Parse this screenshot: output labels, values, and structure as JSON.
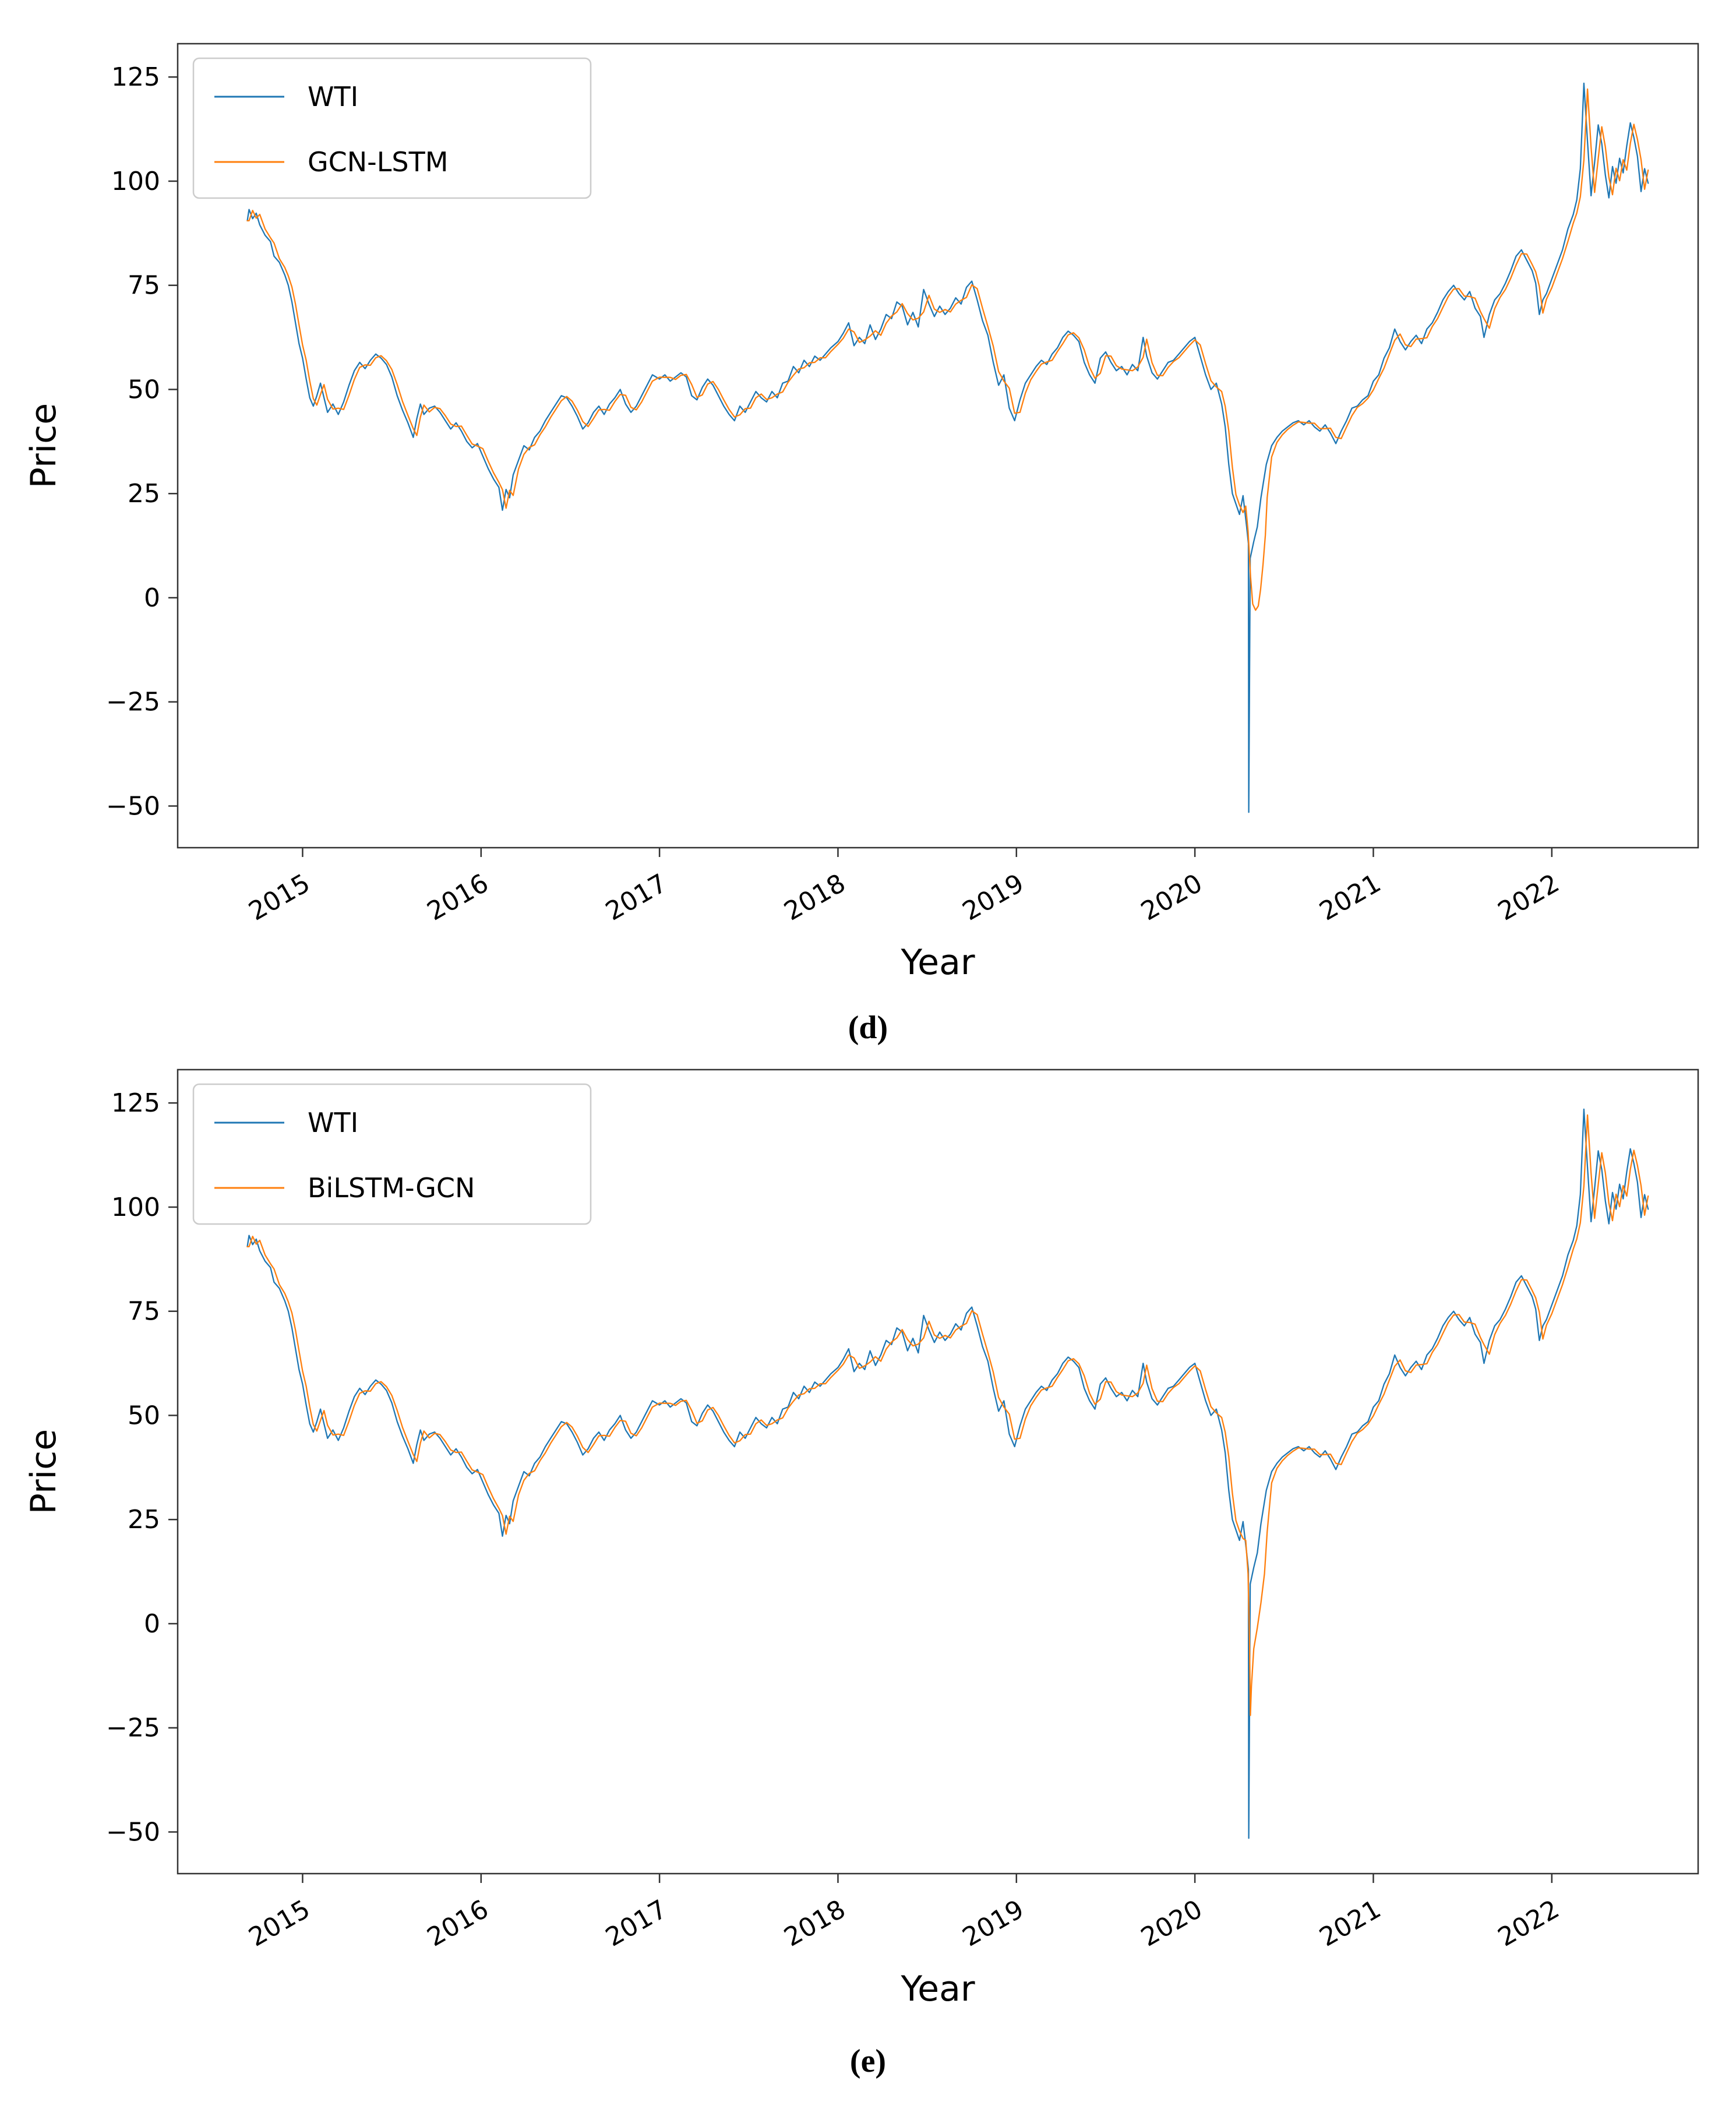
{
  "figure": {
    "background": "#ffffff"
  },
  "colors": {
    "wti": "#1f77b4",
    "prediction": "#ff7f0e",
    "spine": "#333333"
  },
  "shared": {
    "wti_points": [
      [
        2014.69,
        90.5
      ],
      [
        2014.7,
        93.2
      ],
      [
        2014.72,
        91.0
      ],
      [
        2014.74,
        92.3
      ],
      [
        2014.76,
        89.5
      ],
      [
        2014.79,
        87.0
      ],
      [
        2014.82,
        85.5
      ],
      [
        2014.84,
        82.0
      ],
      [
        2014.87,
        80.5
      ],
      [
        2014.9,
        77.5
      ],
      [
        2014.92,
        75.0
      ],
      [
        2014.94,
        71.0
      ],
      [
        2014.96,
        66.0
      ],
      [
        2014.98,
        61.0
      ],
      [
        2015.0,
        57.5
      ],
      [
        2015.02,
        52.5
      ],
      [
        2015.04,
        48.0
      ],
      [
        2015.06,
        46.0
      ],
      [
        2015.08,
        48.5
      ],
      [
        2015.1,
        51.5
      ],
      [
        2015.12,
        48.0
      ],
      [
        2015.14,
        44.5
      ],
      [
        2015.17,
        46.5
      ],
      [
        2015.2,
        44.0
      ],
      [
        2015.23,
        47.0
      ],
      [
        2015.26,
        51.0
      ],
      [
        2015.29,
        54.5
      ],
      [
        2015.32,
        56.5
      ],
      [
        2015.35,
        55.0
      ],
      [
        2015.38,
        57.0
      ],
      [
        2015.41,
        58.5
      ],
      [
        2015.44,
        57.5
      ],
      [
        2015.47,
        56.0
      ],
      [
        2015.5,
        53.0
      ],
      [
        2015.53,
        48.5
      ],
      [
        2015.56,
        45.0
      ],
      [
        2015.59,
        42.0
      ],
      [
        2015.62,
        38.5
      ],
      [
        2015.64,
        43.0
      ],
      [
        2015.66,
        46.5
      ],
      [
        2015.68,
        44.0
      ],
      [
        2015.71,
        45.5
      ],
      [
        2015.74,
        46.0
      ],
      [
        2015.77,
        44.5
      ],
      [
        2015.8,
        42.5
      ],
      [
        2015.83,
        40.5
      ],
      [
        2015.86,
        42.0
      ],
      [
        2015.89,
        40.0
      ],
      [
        2015.92,
        37.5
      ],
      [
        2015.95,
        36.0
      ],
      [
        2015.98,
        37.0
      ],
      [
        2016.01,
        34.0
      ],
      [
        2016.04,
        31.0
      ],
      [
        2016.07,
        28.5
      ],
      [
        2016.1,
        26.5
      ],
      [
        2016.12,
        21.0
      ],
      [
        2016.14,
        26.0
      ],
      [
        2016.16,
        24.0
      ],
      [
        2016.18,
        29.5
      ],
      [
        2016.21,
        33.0
      ],
      [
        2016.24,
        36.5
      ],
      [
        2016.27,
        35.5
      ],
      [
        2016.3,
        38.5
      ],
      [
        2016.33,
        40.0
      ],
      [
        2016.36,
        42.5
      ],
      [
        2016.39,
        44.5
      ],
      [
        2016.42,
        46.5
      ],
      [
        2016.45,
        48.5
      ],
      [
        2016.48,
        48.0
      ],
      [
        2016.51,
        46.0
      ],
      [
        2016.54,
        43.5
      ],
      [
        2016.57,
        40.5
      ],
      [
        2016.6,
        42.0
      ],
      [
        2016.63,
        44.5
      ],
      [
        2016.66,
        46.0
      ],
      [
        2016.69,
        44.0
      ],
      [
        2016.72,
        46.5
      ],
      [
        2016.75,
        48.0
      ],
      [
        2016.78,
        50.0
      ],
      [
        2016.81,
        46.5
      ],
      [
        2016.84,
        44.5
      ],
      [
        2016.87,
        46.0
      ],
      [
        2016.9,
        48.5
      ],
      [
        2016.93,
        51.0
      ],
      [
        2016.96,
        53.5
      ],
      [
        2017.0,
        52.5
      ],
      [
        2017.03,
        53.5
      ],
      [
        2017.06,
        52.0
      ],
      [
        2017.09,
        53.0
      ],
      [
        2017.12,
        54.0
      ],
      [
        2017.15,
        53.0
      ],
      [
        2017.18,
        48.5
      ],
      [
        2017.21,
        47.5
      ],
      [
        2017.24,
        50.5
      ],
      [
        2017.27,
        52.5
      ],
      [
        2017.3,
        51.0
      ],
      [
        2017.33,
        48.5
      ],
      [
        2017.36,
        46.0
      ],
      [
        2017.39,
        44.0
      ],
      [
        2017.42,
        42.5
      ],
      [
        2017.45,
        46.0
      ],
      [
        2017.48,
        44.5
      ],
      [
        2017.51,
        47.0
      ],
      [
        2017.54,
        49.5
      ],
      [
        2017.57,
        48.0
      ],
      [
        2017.6,
        47.0
      ],
      [
        2017.63,
        49.5
      ],
      [
        2017.66,
        48.0
      ],
      [
        2017.69,
        51.5
      ],
      [
        2017.72,
        52.0
      ],
      [
        2017.75,
        55.5
      ],
      [
        2017.78,
        54.0
      ],
      [
        2017.81,
        57.0
      ],
      [
        2017.84,
        55.5
      ],
      [
        2017.87,
        58.0
      ],
      [
        2017.9,
        57.0
      ],
      [
        2017.93,
        58.5
      ],
      [
        2017.96,
        60.0
      ],
      [
        2018.0,
        61.5
      ],
      [
        2018.03,
        63.5
      ],
      [
        2018.06,
        66.0
      ],
      [
        2018.09,
        60.5
      ],
      [
        2018.12,
        62.5
      ],
      [
        2018.15,
        61.0
      ],
      [
        2018.18,
        65.5
      ],
      [
        2018.21,
        62.0
      ],
      [
        2018.24,
        64.5
      ],
      [
        2018.27,
        68.0
      ],
      [
        2018.3,
        67.0
      ],
      [
        2018.33,
        71.0
      ],
      [
        2018.36,
        70.0
      ],
      [
        2018.39,
        65.5
      ],
      [
        2018.42,
        68.5
      ],
      [
        2018.45,
        65.0
      ],
      [
        2018.48,
        74.0
      ],
      [
        2018.51,
        70.5
      ],
      [
        2018.54,
        67.5
      ],
      [
        2018.57,
        70.0
      ],
      [
        2018.6,
        68.0
      ],
      [
        2018.63,
        69.5
      ],
      [
        2018.66,
        72.0
      ],
      [
        2018.69,
        70.5
      ],
      [
        2018.72,
        74.5
      ],
      [
        2018.75,
        76.0
      ],
      [
        2018.78,
        71.5
      ],
      [
        2018.81,
        66.5
      ],
      [
        2018.84,
        63.0
      ],
      [
        2018.87,
        56.5
      ],
      [
        2018.9,
        51.0
      ],
      [
        2018.93,
        53.5
      ],
      [
        2018.96,
        45.5
      ],
      [
        2018.99,
        42.5
      ],
      [
        2019.02,
        47.5
      ],
      [
        2019.05,
        51.5
      ],
      [
        2019.08,
        53.5
      ],
      [
        2019.11,
        55.5
      ],
      [
        2019.14,
        57.0
      ],
      [
        2019.17,
        56.0
      ],
      [
        2019.2,
        58.5
      ],
      [
        2019.23,
        60.0
      ],
      [
        2019.26,
        62.5
      ],
      [
        2019.29,
        64.0
      ],
      [
        2019.32,
        63.0
      ],
      [
        2019.35,
        61.5
      ],
      [
        2019.38,
        56.5
      ],
      [
        2019.41,
        53.5
      ],
      [
        2019.44,
        51.5
      ],
      [
        2019.47,
        57.5
      ],
      [
        2019.5,
        59.0
      ],
      [
        2019.53,
        56.5
      ],
      [
        2019.56,
        54.5
      ],
      [
        2019.59,
        55.5
      ],
      [
        2019.62,
        53.5
      ],
      [
        2019.65,
        56.0
      ],
      [
        2019.68,
        54.5
      ],
      [
        2019.71,
        62.5
      ],
      [
        2019.73,
        58.0
      ],
      [
        2019.76,
        54.0
      ],
      [
        2019.79,
        52.5
      ],
      [
        2019.82,
        54.5
      ],
      [
        2019.85,
        56.5
      ],
      [
        2019.88,
        57.0
      ],
      [
        2019.91,
        58.5
      ],
      [
        2019.94,
        60.0
      ],
      [
        2019.97,
        61.5
      ],
      [
        2020.0,
        62.5
      ],
      [
        2020.03,
        58.0
      ],
      [
        2020.06,
        53.5
      ],
      [
        2020.09,
        50.0
      ],
      [
        2020.12,
        51.5
      ],
      [
        2020.15,
        46.5
      ],
      [
        2020.17,
        41.0
      ],
      [
        2020.19,
        32.0
      ],
      [
        2020.21,
        25.0
      ],
      [
        2020.23,
        22.5
      ],
      [
        2020.25,
        20.0
      ],
      [
        2020.27,
        24.5
      ],
      [
        2020.29,
        17.0
      ],
      [
        2020.3,
        13.0
      ],
      [
        2020.302,
        -51.5
      ],
      [
        2020.31,
        9.5
      ],
      [
        2020.33,
        13.5
      ],
      [
        2020.35,
        17.0
      ],
      [
        2020.37,
        24.0
      ],
      [
        2020.4,
        32.0
      ],
      [
        2020.43,
        36.5
      ],
      [
        2020.46,
        38.5
      ],
      [
        2020.49,
        40.0
      ],
      [
        2020.52,
        41.0
      ],
      [
        2020.55,
        42.0
      ],
      [
        2020.58,
        42.5
      ],
      [
        2020.61,
        41.5
      ],
      [
        2020.64,
        42.5
      ],
      [
        2020.67,
        41.0
      ],
      [
        2020.7,
        40.0
      ],
      [
        2020.73,
        41.5
      ],
      [
        2020.76,
        39.5
      ],
      [
        2020.79,
        37.0
      ],
      [
        2020.82,
        40.0
      ],
      [
        2020.85,
        42.5
      ],
      [
        2020.88,
        45.5
      ],
      [
        2020.91,
        46.0
      ],
      [
        2020.94,
        47.5
      ],
      [
        2020.97,
        48.5
      ],
      [
        2021.0,
        52.0
      ],
      [
        2021.03,
        53.5
      ],
      [
        2021.06,
        57.5
      ],
      [
        2021.09,
        60.0
      ],
      [
        2021.12,
        64.5
      ],
      [
        2021.15,
        61.5
      ],
      [
        2021.18,
        59.5
      ],
      [
        2021.21,
        61.5
      ],
      [
        2021.24,
        63.0
      ],
      [
        2021.27,
        61.0
      ],
      [
        2021.3,
        64.5
      ],
      [
        2021.33,
        66.0
      ],
      [
        2021.36,
        68.5
      ],
      [
        2021.39,
        71.5
      ],
      [
        2021.42,
        73.5
      ],
      [
        2021.45,
        75.0
      ],
      [
        2021.48,
        73.0
      ],
      [
        2021.51,
        71.5
      ],
      [
        2021.54,
        73.5
      ],
      [
        2021.57,
        69.5
      ],
      [
        2021.6,
        67.5
      ],
      [
        2021.62,
        62.5
      ],
      [
        2021.65,
        68.0
      ],
      [
        2021.68,
        71.5
      ],
      [
        2021.71,
        73.0
      ],
      [
        2021.74,
        75.5
      ],
      [
        2021.77,
        78.5
      ],
      [
        2021.8,
        82.0
      ],
      [
        2021.83,
        83.5
      ],
      [
        2021.86,
        81.0
      ],
      [
        2021.89,
        78.5
      ],
      [
        2021.91,
        75.5
      ],
      [
        2021.93,
        68.0
      ],
      [
        2021.95,
        71.5
      ],
      [
        2021.97,
        73.0
      ],
      [
        2022.0,
        76.5
      ],
      [
        2022.03,
        80.0
      ],
      [
        2022.06,
        83.5
      ],
      [
        2022.09,
        88.5
      ],
      [
        2022.12,
        92.0
      ],
      [
        2022.14,
        95.5
      ],
      [
        2022.16,
        103.0
      ],
      [
        2022.18,
        123.5
      ],
      [
        2022.2,
        109.5
      ],
      [
        2022.22,
        96.5
      ],
      [
        2022.24,
        104.5
      ],
      [
        2022.26,
        113.5
      ],
      [
        2022.28,
        109.0
      ],
      [
        2022.3,
        101.5
      ],
      [
        2022.32,
        96.0
      ],
      [
        2022.34,
        103.5
      ],
      [
        2022.36,
        99.5
      ],
      [
        2022.38,
        105.5
      ],
      [
        2022.4,
        102.0
      ],
      [
        2022.42,
        108.5
      ],
      [
        2022.44,
        114.0
      ],
      [
        2022.46,
        110.5
      ],
      [
        2022.48,
        106.0
      ],
      [
        2022.5,
        97.5
      ],
      [
        2022.52,
        103.0
      ],
      [
        2022.54,
        99.5
      ]
    ]
  },
  "chart_data": [
    {
      "type": "line",
      "caption": "(d)",
      "xlabel": "Year",
      "ylabel": "Price",
      "xlim": [
        2014.3,
        2022.82
      ],
      "ylim": [
        -60,
        133
      ],
      "xticks": [
        2015,
        2016,
        2017,
        2018,
        2019,
        2020,
        2021,
        2022
      ],
      "yticks": [
        -50,
        -25,
        0,
        25,
        50,
        75,
        100,
        125
      ],
      "grid": false,
      "legend_position": "upper left",
      "series": [
        {
          "name": "WTI",
          "color": "#1f77b4",
          "points_ref": "shared.wti_points"
        },
        {
          "name": "GCN-LSTM",
          "color": "#ff7f0e",
          "derived_from": "WTI",
          "lag_years": 0.018,
          "crash_patch": {
            "x_range": [
              2020.275,
              2020.41
            ],
            "points": [
              [
                2020.285,
                22
              ],
              [
                2020.298,
                16
              ],
              [
                2020.312,
                5
              ],
              [
                2020.324,
                -1.5
              ],
              [
                2020.34,
                -3
              ],
              [
                2020.355,
                -2
              ],
              [
                2020.368,
                2
              ],
              [
                2020.382,
                8
              ],
              [
                2020.395,
                15
              ],
              [
                2020.405,
                24
              ]
            ]
          }
        }
      ]
    },
    {
      "type": "line",
      "caption": "(e)",
      "xlabel": "Year",
      "ylabel": "Price",
      "xlim": [
        2014.3,
        2022.82
      ],
      "ylim": [
        -60,
        133
      ],
      "xticks": [
        2015,
        2016,
        2017,
        2018,
        2019,
        2020,
        2021,
        2022
      ],
      "yticks": [
        -50,
        -25,
        0,
        25,
        50,
        75,
        100,
        125
      ],
      "grid": false,
      "legend_position": "upper left",
      "series": [
        {
          "name": "WTI",
          "color": "#1f77b4",
          "points_ref": "shared.wti_points"
        },
        {
          "name": "BiLSTM-GCN",
          "color": "#ff7f0e",
          "derived_from": "WTI",
          "lag_years": 0.018,
          "crash_patch": {
            "x_range": [
              2020.275,
              2020.41
            ],
            "points": [
              [
                2020.285,
                20
              ],
              [
                2020.298,
                12
              ],
              [
                2020.306,
                -4
              ],
              [
                2020.311,
                -22
              ],
              [
                2020.317,
                -15
              ],
              [
                2020.33,
                -6
              ],
              [
                2020.35,
                -1
              ],
              [
                2020.37,
                5
              ],
              [
                2020.39,
                12
              ],
              [
                2020.405,
                22
              ]
            ]
          }
        }
      ]
    }
  ]
}
